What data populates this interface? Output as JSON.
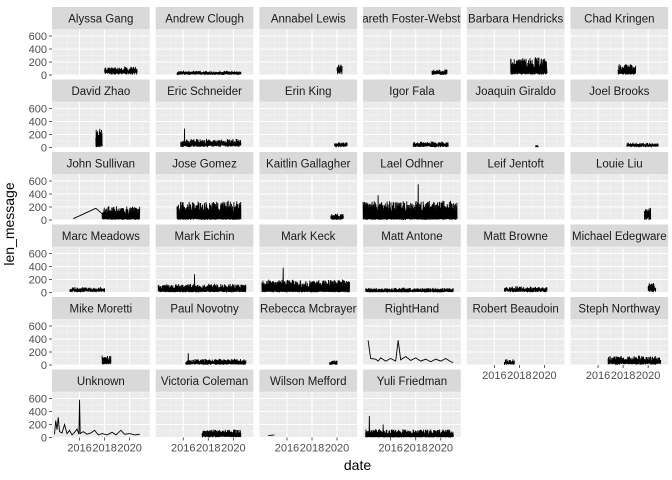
{
  "chart_data": {
    "type": "line",
    "faceted": true,
    "xlabel": "date",
    "ylabel": "len_message",
    "ylim": [
      0,
      700
    ],
    "y_ticks": [
      0,
      200,
      400,
      600
    ],
    "y_tick_labels": [
      "0",
      "200",
      "400",
      "600"
    ],
    "xlim": [
      2013.8,
      2021.6
    ],
    "x_ticks": [
      2016,
      2018,
      2020
    ],
    "x_tick_labels": [
      "2016",
      "2018",
      "2020"
    ],
    "grid": true,
    "panel_background": "#ebebeb",
    "strip_background": "#d9d9d9",
    "line_color": "#000000",
    "facets": [
      {
        "name": "Alyssa Gang",
        "kind": "band",
        "x": [
          2018.0,
          2020.6
        ],
        "base": 40,
        "amp": 100
      },
      {
        "name": "Andrew Clough",
        "kind": "band",
        "x": [
          2015.5,
          2020.6
        ],
        "base": 20,
        "amp": 50
      },
      {
        "name": "Annabel Lewis",
        "kind": "band",
        "x": [
          2020.0,
          2020.4
        ],
        "base": 60,
        "amp": 120
      },
      {
        "name": "Gareth Foster-Webster",
        "kind": "band",
        "x": [
          2019.3,
          2020.5
        ],
        "base": 30,
        "amp": 60
      },
      {
        "name": "Barbara Hendricks",
        "kind": "band",
        "x": [
          2017.3,
          2020.2
        ],
        "base": 30,
        "amp": 250
      },
      {
        "name": "Chad Kringen",
        "kind": "band",
        "x": [
          2017.6,
          2019.0
        ],
        "base": 30,
        "amp": 150
      },
      {
        "name": "David Zhao",
        "kind": "band",
        "x": [
          2017.3,
          2017.8
        ],
        "base": 40,
        "amp": 260
      },
      {
        "name": "Eric Schneider",
        "kind": "band",
        "x": [
          2015.8,
          2020.6
        ],
        "base": 40,
        "amp": 100,
        "peaks": [
          [
            2016.1,
            290
          ]
        ]
      },
      {
        "name": "Erin King",
        "kind": "band",
        "x": [
          2019.8,
          2020.8
        ],
        "base": 30,
        "amp": 60
      },
      {
        "name": "Igor Fala",
        "kind": "band",
        "x": [
          2017.8,
          2020.6
        ],
        "base": 30,
        "amp": 70
      },
      {
        "name": "Joaquin Giraldo",
        "kind": "band",
        "x": [
          2019.3,
          2019.5
        ],
        "base": 10,
        "amp": 30
      },
      {
        "name": "Joel Brooks",
        "kind": "band",
        "x": [
          2018.3,
          2020.8
        ],
        "base": 30,
        "amp": 50
      },
      {
        "name": "John Sullivan",
        "kind": "band",
        "x": [
          2017.8,
          2020.8
        ],
        "base": 20,
        "amp": 200,
        "lead": [
          [
            2015.5,
            20
          ],
          [
            2017.3,
            180
          ]
        ]
      },
      {
        "name": "Jose Gomez",
        "kind": "band",
        "x": [
          2015.5,
          2020.6
        ],
        "base": 20,
        "amp": 280
      },
      {
        "name": "Kaitlin Gallagher",
        "kind": "band",
        "x": [
          2019.5,
          2020.5
        ],
        "base": 20,
        "amp": 80
      },
      {
        "name": "Lael Odhner",
        "kind": "band",
        "x": [
          2013.8,
          2021.3
        ],
        "base": 20,
        "amp": 280,
        "peaks": [
          [
            2018.2,
            550
          ],
          [
            2015.0,
            380
          ]
        ]
      },
      {
        "name": "Leif Jentoft",
        "kind": "none"
      },
      {
        "name": "Louie Liu",
        "kind": "band",
        "x": [
          2019.7,
          2020.2
        ],
        "base": 40,
        "amp": 160
      },
      {
        "name": "Marc Meadows",
        "kind": "band",
        "x": [
          2015.2,
          2018.0
        ],
        "base": 30,
        "amp": 60
      },
      {
        "name": "Mark Eichin",
        "kind": "band",
        "x": [
          2014.0,
          2021.0
        ],
        "base": 20,
        "amp": 120,
        "peaks": [
          [
            2016.9,
            280
          ]
        ]
      },
      {
        "name": "Mark Keck",
        "kind": "band",
        "x": [
          2014.0,
          2021.0
        ],
        "base": 20,
        "amp": 180,
        "peaks": [
          [
            2015.7,
            380
          ]
        ]
      },
      {
        "name": "Matt Antone",
        "kind": "band",
        "x": [
          2014.0,
          2021.0
        ],
        "base": 15,
        "amp": 60
      },
      {
        "name": "Matt Browne",
        "kind": "band",
        "x": [
          2016.8,
          2020.2
        ],
        "base": 30,
        "amp": 70
      },
      {
        "name": "Michael Edegware",
        "kind": "band",
        "x": [
          2020.0,
          2020.6
        ],
        "base": 40,
        "amp": 120
      },
      {
        "name": "Mike Moretti",
        "kind": "band",
        "x": [
          2017.8,
          2018.5
        ],
        "base": 40,
        "amp": 130
      },
      {
        "name": "Paul Novotny",
        "kind": "band",
        "x": [
          2016.2,
          2021.0
        ],
        "base": 20,
        "amp": 80,
        "peaks": [
          [
            2016.4,
            180
          ]
        ]
      },
      {
        "name": "Rebecca Mcbrayer",
        "kind": "band",
        "x": [
          2019.4,
          2020.0
        ],
        "base": 20,
        "amp": 60
      },
      {
        "name": "RightHand",
        "kind": "series",
        "points": [
          [
            2014.2,
            380
          ],
          [
            2014.4,
            100
          ],
          [
            2014.8,
            90
          ],
          [
            2015.0,
            60
          ],
          [
            2015.2,
            110
          ],
          [
            2015.6,
            60
          ],
          [
            2016.0,
            100
          ],
          [
            2016.4,
            60
          ],
          [
            2016.6,
            380
          ],
          [
            2016.8,
            80
          ],
          [
            2017.2,
            130
          ],
          [
            2017.6,
            70
          ],
          [
            2018.0,
            110
          ],
          [
            2018.4,
            60
          ],
          [
            2018.8,
            90
          ],
          [
            2019.2,
            50
          ],
          [
            2019.6,
            90
          ],
          [
            2020.0,
            60
          ],
          [
            2020.4,
            100
          ],
          [
            2020.8,
            50
          ],
          [
            2021.0,
            40
          ]
        ]
      },
      {
        "name": "Robert Beaudoin",
        "kind": "band",
        "x": [
          2016.8,
          2017.6
        ],
        "base": 20,
        "amp": 70
      },
      {
        "name": "Steph Northway",
        "kind": "band",
        "x": [
          2016.8,
          2021.0
        ],
        "base": 30,
        "amp": 120
      },
      {
        "name": "Unknown",
        "kind": "series",
        "points": [
          [
            2014.0,
            50
          ],
          [
            2014.1,
            260
          ],
          [
            2014.2,
            120
          ],
          [
            2014.3,
            310
          ],
          [
            2014.4,
            90
          ],
          [
            2014.6,
            70
          ],
          [
            2014.8,
            200
          ],
          [
            2015.0,
            60
          ],
          [
            2015.2,
            110
          ],
          [
            2015.4,
            40
          ],
          [
            2015.6,
            80
          ],
          [
            2015.8,
            130
          ],
          [
            2015.95,
            50
          ],
          [
            2016.0,
            580
          ],
          [
            2016.05,
            60
          ],
          [
            2016.3,
            90
          ],
          [
            2016.6,
            50
          ],
          [
            2016.9,
            70
          ],
          [
            2017.2,
            110
          ],
          [
            2017.5,
            40
          ],
          [
            2017.8,
            60
          ],
          [
            2018.2,
            40
          ],
          [
            2018.6,
            80
          ],
          [
            2018.9,
            40
          ],
          [
            2019.3,
            110
          ],
          [
            2019.6,
            50
          ],
          [
            2020.0,
            60
          ],
          [
            2020.4,
            40
          ],
          [
            2020.8,
            50
          ]
        ]
      },
      {
        "name": "Victoria Coleman",
        "kind": "band",
        "x": [
          2017.5,
          2020.6
        ],
        "base": 20,
        "amp": 110
      },
      {
        "name": "Wilson Mefford",
        "kind": "series",
        "points": [
          [
            2014.5,
            30
          ],
          [
            2015.0,
            40
          ]
        ]
      },
      {
        "name": "Yuli Friedman",
        "kind": "band",
        "x": [
          2014.0,
          2021.0
        ],
        "base": 10,
        "amp": 120,
        "peaks": [
          [
            2014.3,
            330
          ],
          [
            2015.4,
            200
          ]
        ]
      }
    ]
  }
}
